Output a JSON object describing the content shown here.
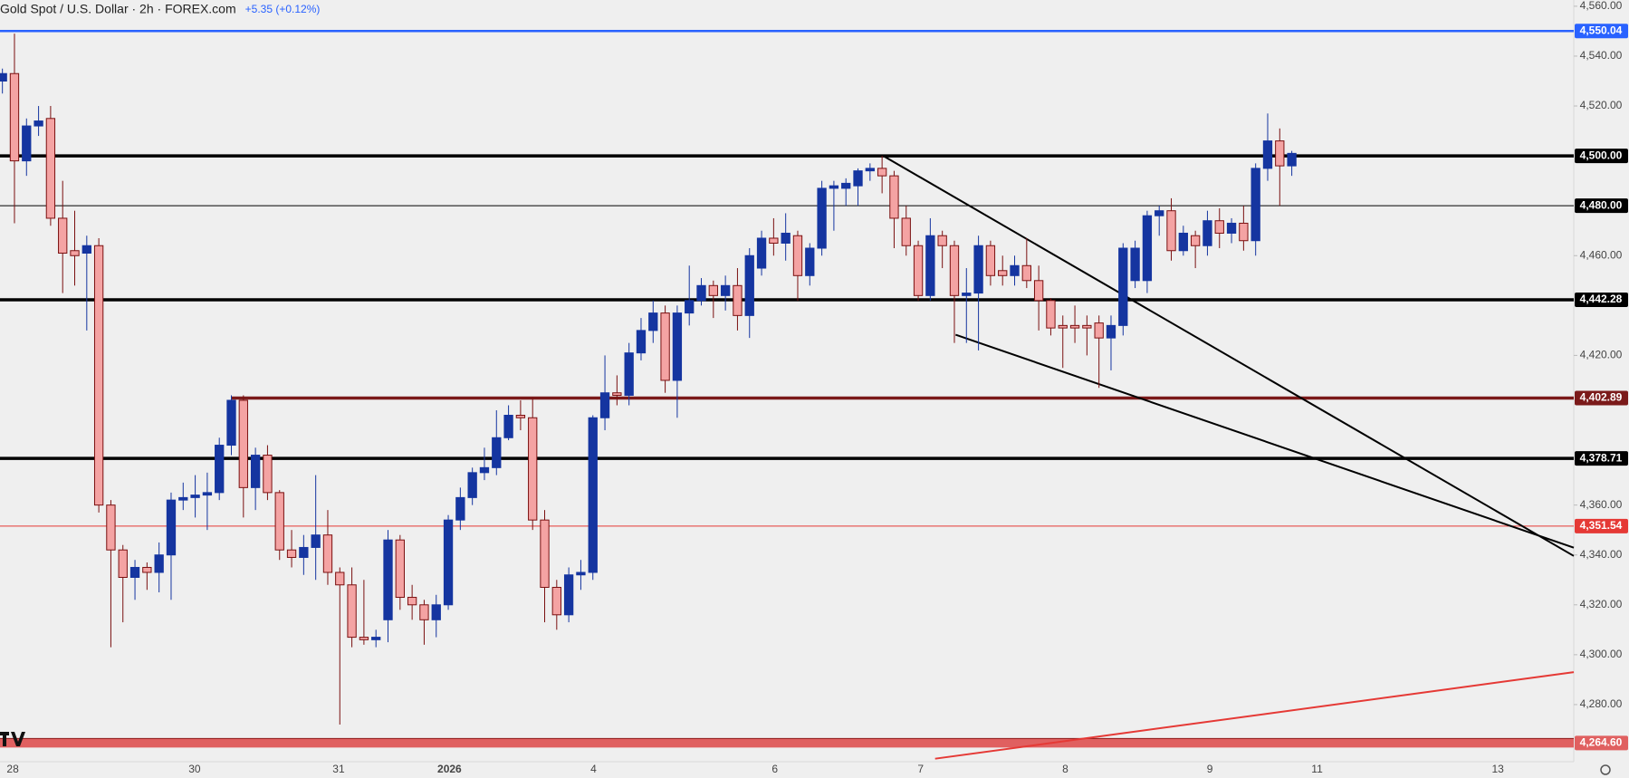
{
  "header": {
    "title": "Gold Spot / U.S. Dollar · 2h · FOREX.com",
    "change": "+5.35 (+0.12%)"
  },
  "chart_data": {
    "type": "candlestick",
    "up_color": "#1535a0",
    "down_color": "#f4a3a3",
    "down_border": "#7a1010",
    "open": [
      4530,
      4533,
      4498,
      4512,
      4515,
      4475,
      4462,
      4461,
      4464,
      4360,
      4342,
      4331,
      4335,
      4333,
      4340,
      4362,
      4363,
      4364,
      4365,
      4384,
      4402,
      4367,
      4380,
      4365,
      4342,
      4339,
      4343,
      4348,
      4333,
      4328,
      4307,
      4306,
      4314,
      4346,
      4323,
      4320,
      4314,
      4320,
      4354,
      4363,
      4373,
      4375,
      4387,
      4396,
      4395,
      4354,
      4327,
      4316,
      4332,
      4333,
      4395,
      4405,
      4404,
      4421,
      4430,
      4437,
      4410,
      4437,
      4442,
      4448,
      4444,
      4448,
      4436,
      4455,
      4467,
      4465,
      4468,
      4452,
      4463,
      4487,
      4487,
      4488,
      4494,
      4495,
      4492,
      4475,
      4464,
      4444,
      4468,
      4464,
      4444,
      4445,
      4464,
      4454,
      4452,
      4456,
      4450,
      4442,
      4432,
      4432,
      4432,
      4433,
      4427,
      4432,
      4450,
      4450,
      4476,
      4478,
      4462,
      4468,
      4464,
      4474,
      4469,
      4473,
      4466,
      4495,
      4506,
      4496
    ],
    "high": [
      4535,
      4549,
      4515,
      4520,
      4520,
      4490,
      4478,
      4468,
      4467,
      4362,
      4344,
      4338,
      4337,
      4345,
      4365,
      4369,
      4372,
      4373,
      4387,
      4404,
      4404,
      4383,
      4384,
      4366,
      4350,
      4348,
      4372,
      4358,
      4335,
      4335,
      4330,
      4310,
      4350,
      4348,
      4328,
      4322,
      4324,
      4356,
      4367,
      4375,
      4383,
      4398,
      4400,
      4402,
      4403,
      4358,
      4330,
      4335,
      4338,
      4396,
      4420,
      4412,
      4425,
      4435,
      4442,
      4440,
      4440,
      4456,
      4451,
      4450,
      4452,
      4455,
      4463,
      4470,
      4475,
      4477,
      4470,
      4465,
      4490,
      4490,
      4491,
      4495,
      4497,
      4500,
      4494,
      4480,
      4466,
      4475,
      4470,
      4466,
      4455,
      4468,
      4466,
      4460,
      4460,
      4467,
      4456,
      4443,
      4436,
      4440,
      4436,
      4436,
      4436,
      4465,
      4466,
      4478,
      4480,
      4483,
      4472,
      4470,
      4478,
      4479,
      4475,
      4480,
      4497,
      4517,
      4511,
      4502
    ],
    "low": [
      4525,
      4473,
      4492,
      4508,
      4472,
      4445,
      4448,
      4430,
      4357,
      4303,
      4313,
      4322,
      4326,
      4325,
      4322,
      4358,
      4355,
      4350,
      4362,
      4380,
      4355,
      4358,
      4362,
      4338,
      4335,
      4332,
      4330,
      4328,
      4272,
      4303,
      4304,
      4303,
      4305,
      4318,
      4314,
      4304,
      4307,
      4318,
      4350,
      4360,
      4370,
      4372,
      4386,
      4390,
      4350,
      4313,
      4310,
      4313,
      4326,
      4330,
      4390,
      4400,
      4400,
      4418,
      4425,
      4405,
      4395,
      4432,
      4440,
      4435,
      4438,
      4430,
      4427,
      4452,
      4460,
      4458,
      4442,
      4448,
      4460,
      4470,
      4480,
      4480,
      4490,
      4485,
      4463,
      4460,
      4442,
      4442,
      4455,
      4425,
      4425,
      4422,
      4448,
      4448,
      4448,
      4447,
      4430,
      4428,
      4415,
      4425,
      4420,
      4407,
      4414,
      4428,
      4447,
      4445,
      4468,
      4458,
      4460,
      4455,
      4460,
      4463,
      4465,
      4462,
      4460,
      4490,
      4480,
      4492
    ],
    "close": [
      4533,
      4498,
      4512,
      4514,
      4475,
      4461,
      4460,
      4464,
      4360,
      4342,
      4331,
      4335,
      4333,
      4340,
      4362,
      4363,
      4364,
      4365,
      4384,
      4402,
      4367,
      4380,
      4365,
      4342,
      4339,
      4343,
      4348,
      4333,
      4328,
      4307,
      4306,
      4307,
      4346,
      4323,
      4320,
      4314,
      4320,
      4354,
      4363,
      4373,
      4375,
      4387,
      4396,
      4395,
      4354,
      4327,
      4316,
      4332,
      4333,
      4395,
      4405,
      4404,
      4421,
      4430,
      4437,
      4410,
      4437,
      4442,
      4448,
      4444,
      4448,
      4436,
      4460,
      4467,
      4465,
      4469,
      4452,
      4463,
      4487,
      4488,
      4489,
      4494,
      4495,
      4492,
      4475,
      4464,
      4444,
      4468,
      4464,
      4444,
      4445,
      4464,
      4452,
      4452,
      4456,
      4450,
      4442,
      4431,
      4431,
      4431,
      4431,
      4427,
      4432,
      4463,
      4463,
      4476,
      4478,
      4462,
      4469,
      4464,
      4474,
      4469,
      4473,
      4466,
      4495,
      4506,
      4496,
      4501
    ],
    "xlim": [
      -0.2,
      130.4
    ],
    "ylim": [
      4257.1,
      4562.5
    ],
    "xticks": [
      {
        "value": 0.86,
        "label": "28"
      },
      {
        "value": 15.95,
        "label": "30"
      },
      {
        "value": 27.9,
        "label": "31"
      },
      {
        "value": 37.1,
        "label": "2026"
      },
      {
        "value": 49.05,
        "label": "4"
      },
      {
        "value": 64.1,
        "label": "6"
      },
      {
        "value": 76.2,
        "label": "7"
      },
      {
        "value": 88.2,
        "label": "8"
      },
      {
        "value": 100.2,
        "label": "9"
      },
      {
        "value": 109.1,
        "label": "11"
      },
      {
        "value": 124.1,
        "label": "13"
      }
    ],
    "yticks": [
      {
        "value": 4560,
        "label": "4,560.00"
      },
      {
        "value": 4540,
        "label": "4,540.00"
      },
      {
        "value": 4520,
        "label": "4,520.00"
      },
      {
        "value": 4460,
        "label": "4,460.00"
      },
      {
        "value": 4420,
        "label": "4,420.00"
      },
      {
        "value": 4360,
        "label": "4,360.00"
      },
      {
        "value": 4340,
        "label": "4,340.00"
      },
      {
        "value": 4320,
        "label": "4,320.00"
      },
      {
        "value": 4300,
        "label": "4,300.00"
      },
      {
        "value": 4280,
        "label": "4,280.00"
      }
    ],
    "levels": [
      {
        "value": 4550.04,
        "label": "4,550.04",
        "color": "#2962ff",
        "style": "medium"
      },
      {
        "value": 4500,
        "label": "4,500.00",
        "color": "#000000",
        "style": "thick"
      },
      {
        "value": 4480,
        "label": "4,480.00",
        "color": "#000000",
        "style": "thin"
      },
      {
        "value": 4442.28,
        "label": "4,442.28",
        "color": "#000000",
        "style": "thick"
      },
      {
        "value": 4402.89,
        "label": "4,402.89",
        "color": "#7b1a1a",
        "style": "thick",
        "from": 19
      },
      {
        "value": 4378.71,
        "label": "4,378.71",
        "color": "#000000",
        "style": "thick"
      },
      {
        "value": 4351.54,
        "label": "4,351.54",
        "color": "#e53935",
        "style": "thin"
      },
      {
        "value": 4264.6,
        "label": "4,264.60",
        "color": "#e06060",
        "style": "band"
      }
    ],
    "trendlines": [
      {
        "x": [
          73.1,
          130.4
        ],
        "y": [
          4500,
          4339.6
        ],
        "color": "#000000"
      },
      {
        "x": [
          79.1,
          130.4
        ],
        "y": [
          4428.3,
          4342.9
        ],
        "color": "#000000"
      },
      {
        "x": [
          77.4,
          130.4
        ],
        "y": [
          4258.3,
          4293
        ],
        "color": "#e53935"
      }
    ],
    "grid": false
  }
}
